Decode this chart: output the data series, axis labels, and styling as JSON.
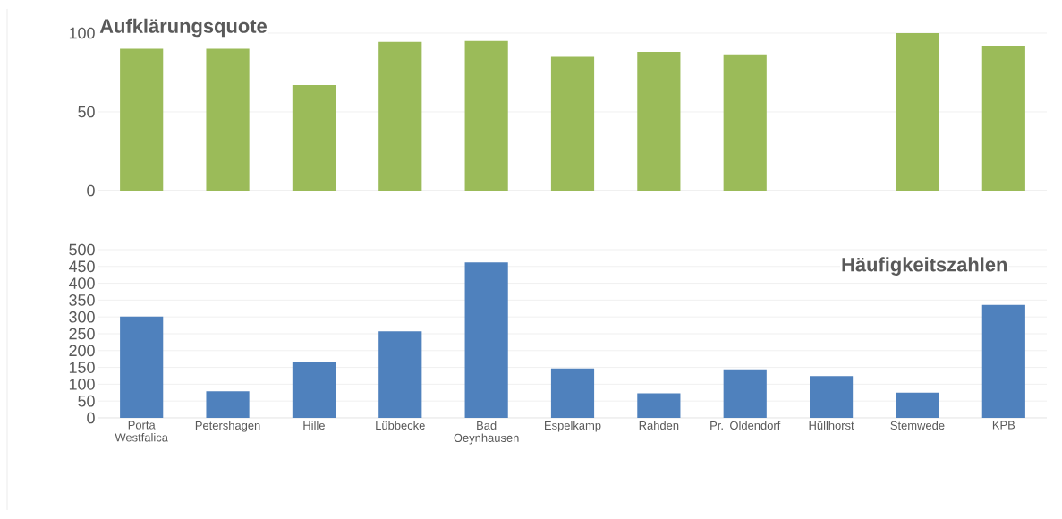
{
  "chart_data": [
    {
      "type": "bar",
      "title": "Aufklärungsquote",
      "categories": [
        null,
        null,
        null,
        null,
        null,
        null,
        null,
        null,
        null,
        null,
        null
      ],
      "values": [
        90,
        90,
        67,
        94.5,
        95,
        85,
        88,
        86.5,
        null,
        100,
        92
      ],
      "color": "#9bbb59",
      "ylim": [
        0,
        100
      ],
      "yticks": [
        0,
        50,
        100
      ],
      "grid": "y",
      "tick_labels": "y"
    },
    {
      "type": "bar",
      "title": "Häufigkeitszahlen",
      "categories": [
        "Porta Westfalica",
        "Petershagen",
        "Hille",
        "Lübbecke",
        "Bad Oeynhausen",
        "Espelkamp",
        "Rahden",
        "Pr. Oldendorf",
        "Hüllhorst",
        "Stemwede",
        "KPB"
      ],
      "values": [
        301,
        79,
        165,
        257,
        462,
        147,
        73,
        144,
        124,
        75,
        336
      ],
      "color": "#4f81bd",
      "ylim": [
        0,
        500
      ],
      "yticks": [
        0,
        50,
        100,
        150,
        200,
        250,
        300,
        350,
        400,
        450,
        500
      ],
      "grid": "y"
    }
  ]
}
